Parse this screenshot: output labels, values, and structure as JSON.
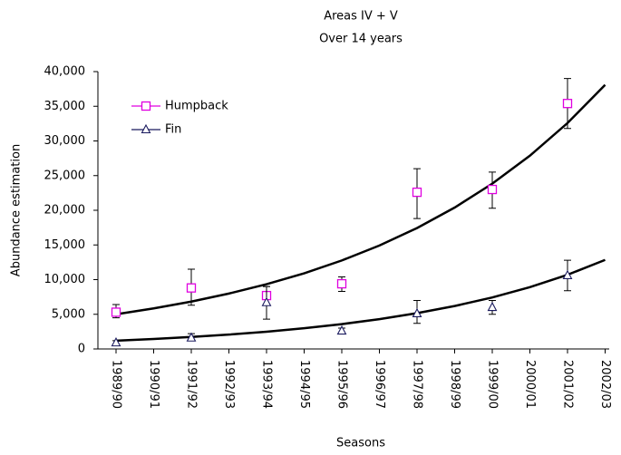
{
  "chart_data": {
    "type": "scatter",
    "title": "Areas IV + V",
    "subtitle": "Over 14 years",
    "x_label": "Seasons",
    "y_label": "Abundance estimation",
    "categories": [
      "1989/90",
      "1990/91",
      "1991/92",
      "1992/93",
      "1993/94",
      "1994/95",
      "1995/96",
      "1996/97",
      "1997/98",
      "1998/99",
      "1999/00",
      "2000/01",
      "2001/02",
      "2002/03"
    ],
    "ylim": [
      0,
      40000
    ],
    "yticks": [
      0,
      {
        "value": 5000,
        "label": "5,000"
      },
      {
        "value": 10000,
        "label": "10,000"
      },
      {
        "value": 15000,
        "label": "15,000"
      },
      {
        "value": 20000,
        "label": "20,000"
      },
      {
        "value": 25000,
        "label": "25,000"
      },
      {
        "value": 30000,
        "label": "30,000"
      },
      {
        "value": 35000,
        "label": "35,000"
      },
      {
        "value": 40000,
        "label": "40,000"
      }
    ],
    "legend": "upper left",
    "series": [
      {
        "name": "Humpback",
        "color": "#e000e0",
        "marker": "square",
        "values": [
          5300,
          null,
          8800,
          null,
          7700,
          null,
          9400,
          null,
          22600,
          null,
          23000,
          null,
          35400,
          null
        ],
        "err_low": [
          4500,
          null,
          6300,
          null,
          6400,
          null,
          8300,
          null,
          18800,
          null,
          20300,
          null,
          31800,
          null
        ],
        "err_high": [
          6400,
          null,
          11500,
          null,
          9000,
          null,
          10400,
          null,
          26000,
          null,
          25500,
          null,
          39000,
          null
        ],
        "trend_values": [
          5000,
          5850,
          6830,
          7990,
          9340,
          10900,
          12760,
          14920,
          17440,
          20390,
          23840,
          27870,
          32580,
          38090
        ]
      },
      {
        "name": "Fin",
        "color": "#1a1a5e",
        "marker": "triangle",
        "values": [
          900,
          null,
          1600,
          null,
          6700,
          null,
          2600,
          null,
          5100,
          null,
          6000,
          null,
          10600,
          null
        ],
        "err_low": [
          600,
          null,
          1200,
          null,
          4300,
          null,
          2200,
          null,
          3700,
          null,
          5000,
          null,
          8400,
          null
        ],
        "err_high": [
          1200,
          null,
          2200,
          null,
          9000,
          null,
          3000,
          null,
          7000,
          null,
          7000,
          null,
          12800,
          null
        ],
        "trend_values": [
          1200,
          1440,
          1728,
          2074,
          2488,
          2986,
          3583,
          4300,
          5160,
          6192,
          7430,
          8916,
          10700,
          12840
        ]
      }
    ]
  }
}
